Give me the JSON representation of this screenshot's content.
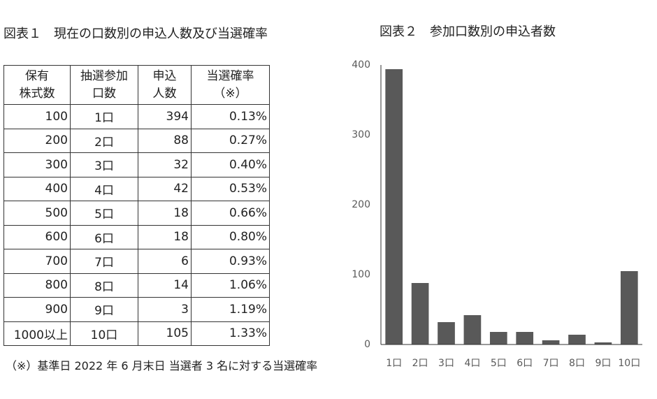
{
  "table_figure": {
    "title": "図表１　現在の口数別の申込人数及び当選確率",
    "header": [
      [
        "保有",
        "株式数"
      ],
      [
        "抽選参加",
        "口数"
      ],
      [
        "申込",
        "人数"
      ],
      [
        "当選確率",
        "（※）"
      ]
    ],
    "rows": [
      [
        "100",
        "1口",
        "394",
        "0.13%"
      ],
      [
        "200",
        "2口",
        "88",
        "0.27%"
      ],
      [
        "300",
        "3口",
        "32",
        "0.40%"
      ],
      [
        "400",
        "4口",
        "42",
        "0.53%"
      ],
      [
        "500",
        "5口",
        "18",
        "0.66%"
      ],
      [
        "600",
        "6口",
        "18",
        "0.80%"
      ],
      [
        "700",
        "7口",
        "6",
        "0.93%"
      ],
      [
        "800",
        "8口",
        "14",
        "1.06%"
      ],
      [
        "900",
        "9口",
        "3",
        "1.19%"
      ],
      [
        "1000以上",
        "10口",
        "105",
        "1.33%"
      ]
    ],
    "note": "（※）基準日 2022 年 6 月末日  当選者 3 名に対する当選確率"
  },
  "chart_data": {
    "type": "bar",
    "title": "図表２　参加口数別の申込者数",
    "categories": [
      "1口",
      "2口",
      "3口",
      "4口",
      "5口",
      "6口",
      "7口",
      "8口",
      "9口",
      "10口"
    ],
    "values": [
      394,
      88,
      32,
      42,
      18,
      18,
      6,
      14,
      3,
      105
    ],
    "color": "#595959",
    "ylim": [
      0,
      400
    ],
    "yticks": [
      0,
      100,
      200,
      300,
      400
    ],
    "grid": false
  }
}
